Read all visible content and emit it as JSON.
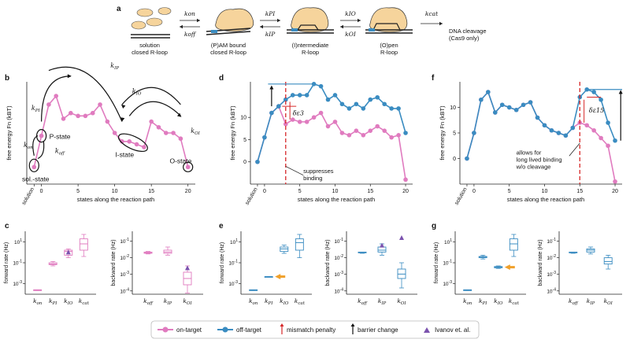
{
  "panel_labels": [
    "a",
    "b",
    "c",
    "d",
    "e",
    "f",
    "g"
  ],
  "scheme": {
    "states": [
      "solution\nclosed R-loop",
      "(P)AM bound\nclosed R-loop",
      "(I)ntermediate\nR-loop",
      "(O)pen\nR-loop"
    ],
    "final": "DNA cleavage\n(Cas9 only)",
    "rates": [
      {
        "fwd": "k_on",
        "bwd": "k_off"
      },
      {
        "fwd": "k_PI",
        "bwd": "k_IP"
      },
      {
        "fwd": "k_IO",
        "bwd": "k_OI"
      },
      {
        "fwd": "k_cat",
        "bwd": ""
      }
    ]
  },
  "landscape": {
    "ylabel": "free energy F_n (k_BT)",
    "xlabel": "states along the reaction path",
    "x_ticklabels": [
      "solution",
      "0",
      "5",
      "10",
      "15",
      "20"
    ],
    "y_ticks_b": [],
    "y_ticks": [
      0,
      5,
      10
    ],
    "state_labels": [
      "sol.-state",
      "P-state",
      "I-state",
      "O-state"
    ],
    "rate_labels": [
      "k_PI",
      "k_IP",
      "k_IO",
      "k_OI",
      "k_on",
      "k_off"
    ],
    "annotation_d": "suppresses\nbinding",
    "annotation_f": "allows for\nlong lived binding\nw/o cleavage",
    "delta_d": "δε3",
    "delta_f": "δε15"
  },
  "chart_data": [
    {
      "type": "line",
      "panel": "b",
      "x": [
        -1,
        0,
        1,
        2,
        3,
        4,
        5,
        6,
        7,
        8,
        9,
        10,
        11,
        12,
        13,
        14,
        15,
        16,
        17,
        18,
        19,
        20
      ],
      "series": [
        {
          "name": "on-target",
          "values": [
            0,
            5.5,
            11,
            12.5,
            8.5,
            9.5,
            9,
            9,
            9.5,
            11,
            8,
            6,
            4.5,
            4.5,
            4,
            3.5,
            8,
            7,
            6,
            6,
            5,
            0
          ]
        }
      ]
    },
    {
      "type": "line",
      "panel": "d",
      "x": [
        -1,
        0,
        1,
        2,
        3,
        4,
        5,
        6,
        7,
        8,
        9,
        10,
        11,
        12,
        13,
        14,
        15,
        16,
        17,
        18,
        19,
        20
      ],
      "ylim": [
        -5,
        18
      ],
      "series": [
        {
          "name": "on-target",
          "values": [
            0,
            5.5,
            11,
            12.5,
            8.5,
            9.5,
            9,
            9,
            10,
            11,
            8,
            9,
            6.5,
            6,
            7,
            6,
            7,
            8,
            7,
            5.5,
            6,
            -4
          ]
        },
        {
          "name": "off-target",
          "values": [
            0,
            5.5,
            11,
            12.5,
            14,
            15,
            15,
            15,
            17.5,
            17,
            14,
            15,
            13,
            12,
            13,
            12,
            14,
            14.5,
            13,
            12,
            12,
            6.5
          ]
        }
      ]
    },
    {
      "type": "line",
      "panel": "f",
      "x": [
        -1,
        0,
        1,
        2,
        3,
        4,
        5,
        6,
        7,
        8,
        9,
        10,
        11,
        12,
        13,
        14,
        15,
        16,
        17,
        18,
        19,
        20
      ],
      "ylim": [
        -5,
        15
      ],
      "series": [
        {
          "name": "on-target",
          "values": [
            0,
            5,
            11.5,
            13,
            9,
            10.5,
            10,
            9.5,
            10.5,
            11,
            8,
            6.5,
            5.5,
            5,
            4.5,
            6,
            7,
            6.5,
            5.5,
            4,
            2.5,
            -4.5
          ]
        },
        {
          "name": "off-target",
          "values": [
            0,
            5,
            11.5,
            13,
            9,
            10.5,
            10,
            9.5,
            10.5,
            11,
            8,
            6.5,
            5.5,
            5,
            4.5,
            6,
            12,
            13.5,
            13,
            11.5,
            7,
            3.5
          ]
        }
      ]
    },
    {
      "type": "box",
      "panel": "c-left",
      "ylabel": "forward rate (Hz)",
      "categories": [
        "k_on",
        "k_PI",
        "k_IO",
        "k_cat"
      ],
      "y_ticklabels": [
        "10^-3",
        "10^-1",
        "10^1"
      ]
    },
    {
      "type": "box",
      "panel": "c-right",
      "ylabel": "backward rate (Hz)",
      "categories": [
        "k_off",
        "k_IP",
        "k_OI"
      ],
      "y_ticklabels": [
        "10^-4",
        "10^-3",
        "10^-2",
        "10^-1"
      ]
    },
    {
      "type": "box",
      "panel": "e-left",
      "ylabel": "forward rate (Hz)",
      "categories": [
        "k_on",
        "k_PI",
        "k_IO",
        "k_cat"
      ],
      "y_ticklabels": [
        "10^-3",
        "10^-1",
        "10^1"
      ]
    },
    {
      "type": "box",
      "panel": "e-right",
      "ylabel": "backward rate (Hz)",
      "categories": [
        "k_off",
        "k_IP",
        "k_OI"
      ],
      "y_ticklabels": [
        "10^-4",
        "10^-3",
        "10^-2",
        "10^-1"
      ]
    },
    {
      "type": "box",
      "panel": "g-left",
      "ylabel": "forward rate (Hz)",
      "categories": [
        "k_on",
        "k_PI",
        "k_IO",
        "k_cat"
      ],
      "y_ticklabels": [
        "10^-3",
        "10^-1",
        "10^1"
      ]
    },
    {
      "type": "box",
      "panel": "g-right",
      "ylabel": "backward rate (Hz)",
      "categories": [
        "k_off",
        "k_IP",
        "k_OI"
      ],
      "y_ticklabels": [
        "10^-4",
        "10^-3",
        "10^-2",
        "10^-1"
      ]
    }
  ],
  "legend": [
    {
      "label": "on-target",
      "color": "#e07bbf",
      "kind": "line"
    },
    {
      "label": "off-target",
      "color": "#3a8cc1",
      "kind": "line"
    },
    {
      "label": "mismatch penalty",
      "color": "#d62728",
      "kind": "arrow"
    },
    {
      "label": "barrier change",
      "color": "#111111",
      "kind": "arrow"
    },
    {
      "label": "Ivanov et. al.",
      "color": "#7b52ae",
      "kind": "triangle"
    }
  ],
  "colors": {
    "on": "#e07bbf",
    "off": "#3a8cc1",
    "red": "#d62728",
    "orange": "#f0a02a",
    "purple": "#7b52ae"
  }
}
